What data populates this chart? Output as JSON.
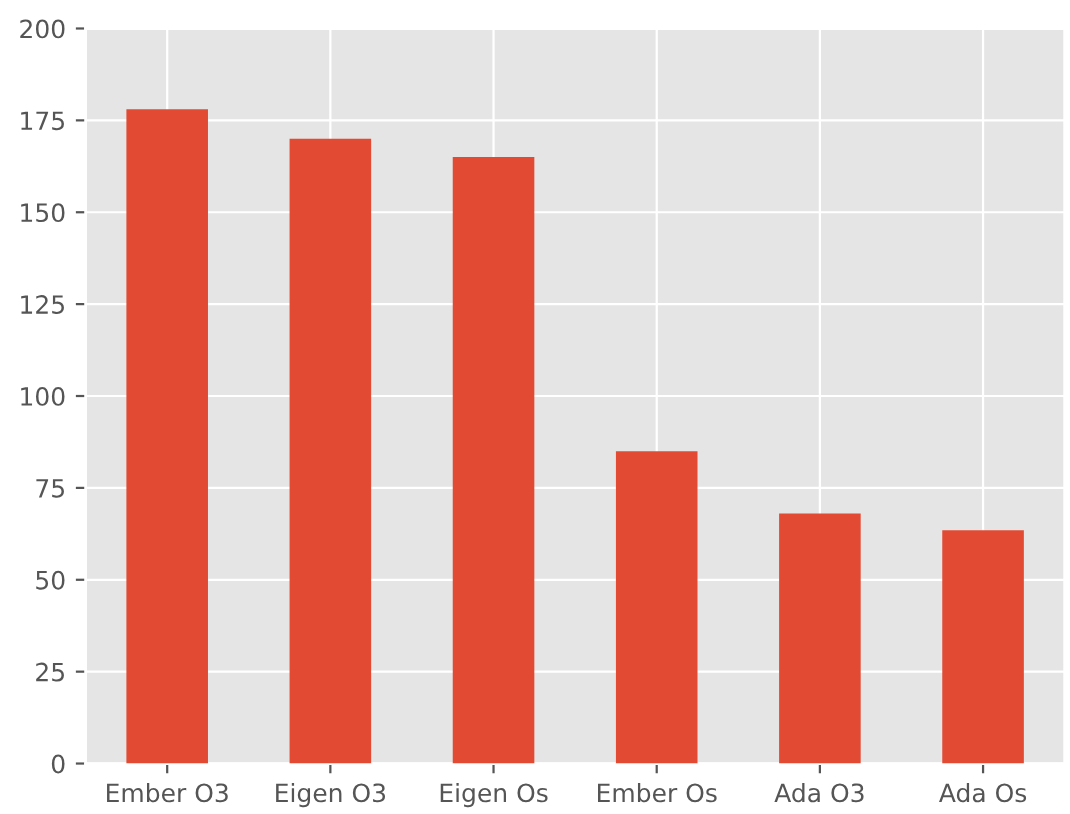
{
  "chart_data": {
    "type": "bar",
    "categories": [
      "Ember O3",
      "Eigen O3",
      "Eigen Os",
      "Ember Os",
      "Ada O3",
      "Ada Os"
    ],
    "values": [
      178,
      170,
      165,
      85,
      68,
      63.5
    ],
    "color": "#e24a33",
    "ylim": [
      0,
      200
    ],
    "yticks": [
      0,
      25,
      50,
      75,
      100,
      125,
      150,
      175,
      200
    ],
    "grid": true,
    "legend": false
  }
}
